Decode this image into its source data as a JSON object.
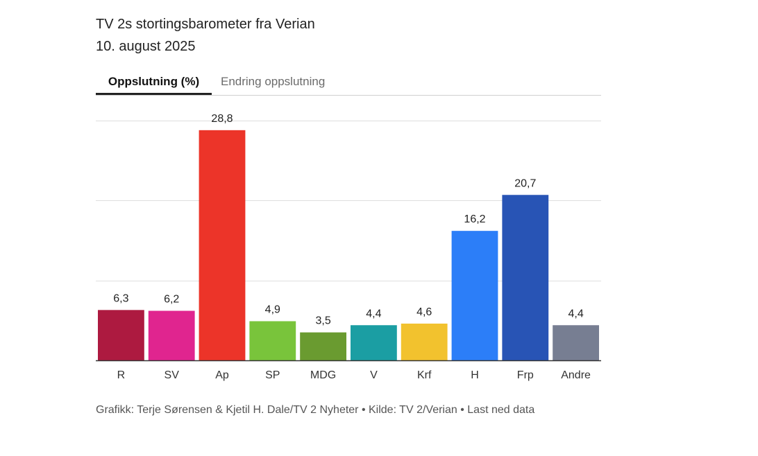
{
  "header": {
    "title": "TV 2s stortingsbarometer fra Verian",
    "subtitle": "10. august 2025"
  },
  "tabs": [
    {
      "label": "Oppslutning (%)",
      "active": true
    },
    {
      "label": "Endring oppslutning",
      "active": false
    }
  ],
  "chart_data": {
    "type": "bar",
    "categories": [
      "R",
      "SV",
      "Ap",
      "SP",
      "MDG",
      "V",
      "Krf",
      "H",
      "Frp",
      "Andre"
    ],
    "values": [
      6.3,
      6.2,
      28.8,
      4.9,
      3.5,
      4.4,
      4.6,
      16.2,
      20.7,
      4.4
    ],
    "value_labels": [
      "6,3",
      "6,2",
      "28,8",
      "4,9",
      "3,5",
      "4,4",
      "4,6",
      "16,2",
      "20,7",
      "4,4"
    ],
    "colors": [
      "#ad1a40",
      "#e0258f",
      "#ec3429",
      "#79c43b",
      "#6a9b30",
      "#1b9ea3",
      "#f2c22e",
      "#2c7ef8",
      "#2854b5",
      "#777e92"
    ],
    "ylim": [
      0,
      30
    ],
    "gridlines": [
      0,
      10,
      20,
      30
    ],
    "grid": true,
    "title": "TV 2s stortingsbarometer fra Verian",
    "xlabel": "",
    "ylabel": ""
  },
  "footer": {
    "credit": "Grafikk: Terje Sørensen & Kjetil H. Dale/TV 2 Nyheter • Kilde: TV 2/Verian • ",
    "download_label": "Last ned data"
  }
}
